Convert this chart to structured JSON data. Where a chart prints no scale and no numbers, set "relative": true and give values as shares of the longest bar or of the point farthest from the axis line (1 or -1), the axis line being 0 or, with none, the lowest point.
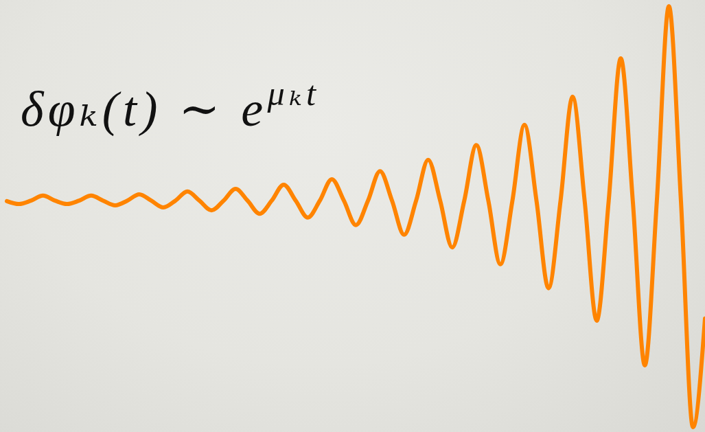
{
  "chart_data": {
    "type": "line",
    "title": "δφₖ(t) ∼ e$^{μₖt}$",
    "relative": true,
    "categories": [
      null,
      null,
      null,
      null,
      null,
      null,
      null,
      null,
      null,
      null,
      null,
      null,
      null,
      null,
      null,
      null,
      null,
      null,
      null,
      null,
      null,
      null,
      null,
      null,
      null,
      null,
      null,
      null,
      null,
      null,
      null,
      null,
      null,
      null,
      null,
      null,
      null,
      null,
      null,
      null,
      null,
      null,
      null,
      null,
      null,
      null,
      null,
      null,
      null,
      null,
      null,
      null,
      null,
      null,
      null,
      null,
      null,
      null,
      null
    ],
    "series": [
      {
        "color": "#ff8400",
        "values": [
          0.537,
          0.53,
          0.538,
          0.55,
          0.538,
          0.53,
          0.538,
          0.55,
          0.538,
          0.527,
          0.538,
          0.553,
          0.538,
          0.522,
          0.538,
          0.56,
          0.538,
          0.515,
          0.538,
          0.566,
          0.538,
          0.507,
          0.538,
          0.576,
          0.538,
          0.498,
          0.538,
          0.589,
          0.538,
          0.48,
          0.538,
          0.608,
          0.538,
          0.457,
          0.538,
          0.635,
          0.538,
          0.427,
          0.538,
          0.67,
          0.538,
          0.387,
          0.538,
          0.718,
          0.538,
          0.33,
          0.538,
          0.785,
          0.538,
          0.253,
          0.538,
          0.876,
          0.538,
          0.147,
          0.538,
          1.0,
          0.538,
          0.0,
          0.258
        ]
      }
    ]
  }
}
